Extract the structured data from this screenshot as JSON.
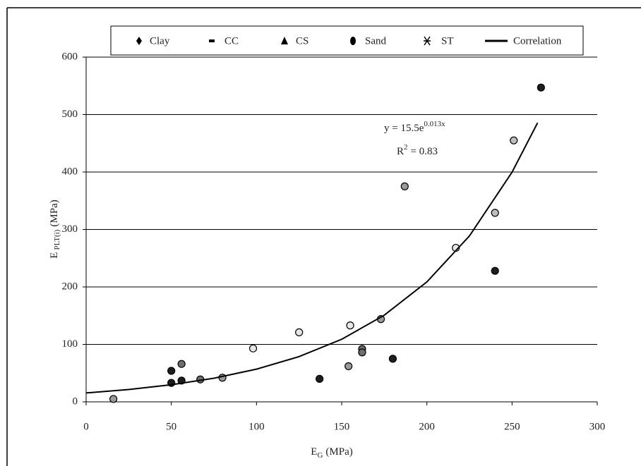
{
  "chart_data": {
    "type": "scatter",
    "x_label": {
      "main": "E",
      "sub": "G",
      "unit": "(MPa)"
    },
    "y_label": {
      "main": "E",
      "sub": "PLT(i)",
      "unit": "(MPa)"
    },
    "annotations": [
      {
        "text": "y = 15.5e",
        "sup": "0.013x"
      },
      {
        "text": "R",
        "sup": "2",
        "rest": "= 0.83"
      }
    ],
    "xlim": [
      0,
      300
    ],
    "xticks": [
      0,
      50,
      100,
      150,
      200,
      250,
      300
    ],
    "ylim": [
      0,
      600
    ],
    "yticks": [
      0,
      100,
      200,
      300,
      400,
      500,
      600
    ],
    "grid": true,
    "legend": "top",
    "series": [
      {
        "name": "Clay",
        "marker": "diamond",
        "color": "#9a9a9a",
        "x": [
          16,
          80,
          154,
          173,
          187
        ],
        "values": [
          5,
          42,
          62,
          144,
          375
        ]
      },
      {
        "name": "CC",
        "marker": "dash",
        "color": "#bdbdbd",
        "x": [
          240,
          251
        ],
        "values": [
          329,
          455
        ]
      },
      {
        "name": "CS",
        "marker": "triangle",
        "color": "#6e6e6e",
        "x": [
          56,
          67,
          162,
          162
        ],
        "values": [
          66,
          39,
          92,
          86
        ]
      },
      {
        "name": "Sand",
        "marker": "circle",
        "color": "#1e1e1e",
        "x": [
          50,
          50,
          56,
          137,
          180,
          240,
          267
        ],
        "values": [
          54,
          33,
          37,
          40,
          75,
          228,
          547
        ]
      },
      {
        "name": "ST",
        "marker": "star",
        "color": "#e6e6e6",
        "x": [
          98,
          125,
          155,
          217
        ],
        "values": [
          93,
          121,
          133,
          268
        ]
      },
      {
        "name": "Correlation",
        "marker": "line",
        "color": "#000000",
        "x": [
          0,
          25,
          50,
          75,
          100,
          125,
          150,
          175,
          200,
          225,
          250,
          265
        ],
        "values": [
          15.5,
          21.5,
          29.7,
          41.1,
          56.9,
          78.7,
          108.9,
          150.8,
          208.7,
          288.8,
          399.7,
          485.7
        ]
      }
    ]
  }
}
